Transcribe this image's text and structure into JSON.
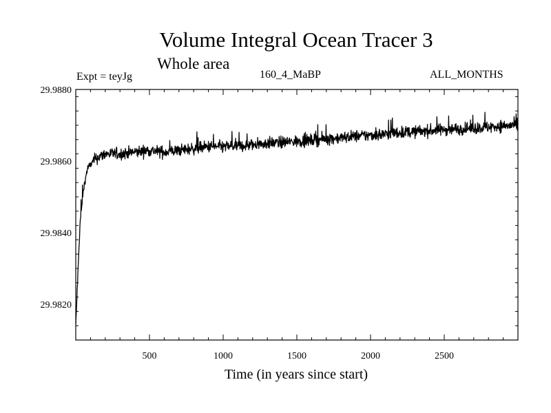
{
  "chart_data": {
    "type": "line",
    "title": "Volume Integral Ocean Tracer 3",
    "subtitle": "Whole area",
    "annotations": {
      "experiment": "Expt = teyJg",
      "run": "160_4_MaBP",
      "period": "ALL_MONTHS"
    },
    "xlabel": "Time (in years since start)",
    "ylabel": "",
    "xlim": [
      0,
      3000
    ],
    "ylim": [
      29.981,
      29.988
    ],
    "xticks": [
      500,
      1000,
      1500,
      2000,
      2500
    ],
    "yticks": [
      29.982,
      29.984,
      29.986,
      29.988
    ],
    "ytick_labels": [
      "29.9820",
      "29.9840",
      "29.9860",
      "29.9880"
    ],
    "series": [
      {
        "x": [
          0,
          10,
          20,
          30,
          40,
          50,
          60,
          70,
          80,
          90,
          100,
          110,
          120,
          130,
          150,
          175,
          200,
          250,
          300,
          400,
          500,
          600,
          700,
          800,
          900,
          1000,
          1100,
          1200,
          1300,
          1400,
          1500,
          1600,
          1700,
          1800,
          1900,
          2000,
          2100,
          2200,
          2300,
          2400,
          2500,
          2600,
          2700,
          2800,
          2900,
          3000
        ],
        "y": [
          29.9814,
          29.9824,
          29.9834,
          29.9843,
          29.9847,
          29.9851,
          29.9854,
          29.9856,
          29.9858,
          29.98585,
          29.9859,
          29.98595,
          29.986,
          29.98605,
          29.9861,
          29.98615,
          29.9862,
          29.9862,
          29.9862,
          29.98625,
          29.9863,
          29.98625,
          29.9863,
          29.98635,
          29.9864,
          29.9864,
          29.98642,
          29.98645,
          29.9865,
          29.98652,
          29.98655,
          29.98658,
          29.98662,
          29.98665,
          29.9867,
          29.98672,
          29.98675,
          29.9868,
          29.98682,
          29.98685,
          29.98688,
          29.9869,
          29.98692,
          29.98695,
          29.98698,
          29.987
        ],
        "noise_amplitude": 0.00028
      }
    ]
  }
}
